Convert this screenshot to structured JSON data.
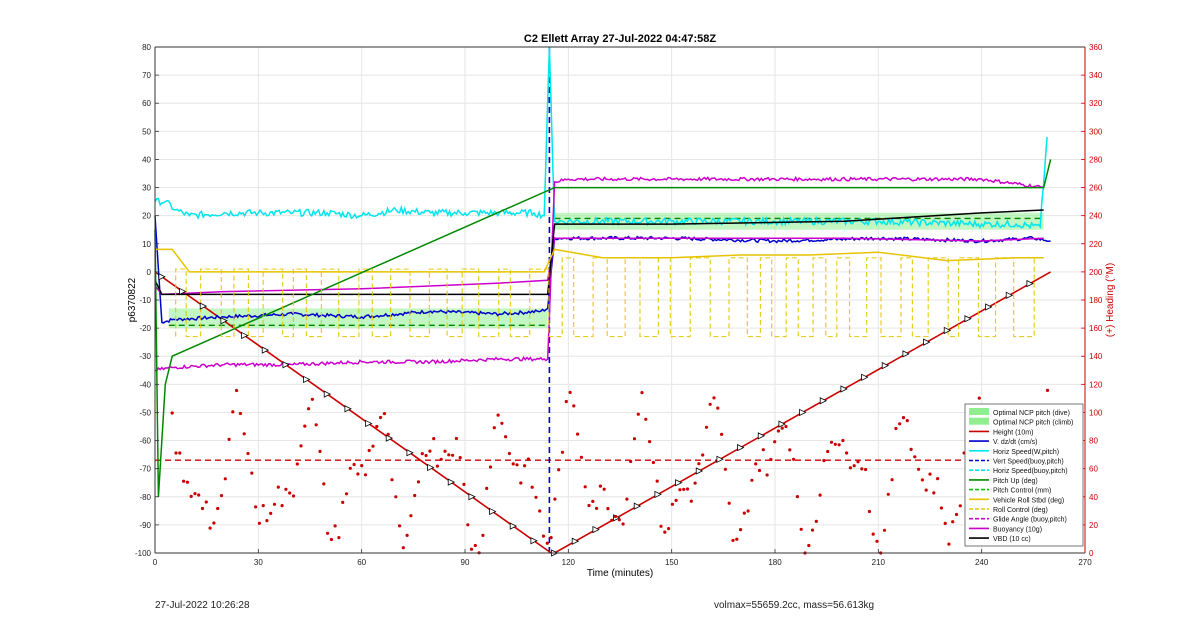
{
  "chart_data": {
    "type": "line",
    "title": "C2 Ellett Array 27-Jul-2022 04:47:58Z",
    "xlabel": "Time (minutes)",
    "ylabel": "p6370822",
    "y2label": "(+) Heading (°M)",
    "xlim": [
      0,
      270
    ],
    "ylim": [
      -100,
      80
    ],
    "y2lim": [
      0,
      360
    ],
    "xticks": [
      0,
      30,
      60,
      90,
      120,
      150,
      180,
      210,
      240,
      270
    ],
    "yticks": [
      -100,
      -90,
      -80,
      -70,
      -60,
      -50,
      -40,
      -30,
      -20,
      -10,
      0,
      10,
      20,
      30,
      40,
      50,
      60,
      70,
      80
    ],
    "y2ticks": [
      0,
      20,
      40,
      60,
      80,
      100,
      120,
      140,
      160,
      180,
      200,
      220,
      240,
      260,
      280,
      300,
      320,
      340,
      360
    ],
    "grid": true,
    "legend_position": "bottom-right",
    "legend": [
      {
        "label": "Optimal NCP pitch (dive)",
        "color": "#90ee90",
        "style": "patch"
      },
      {
        "label": "Optimal NCP pitch (climb)",
        "color": "#90ee90",
        "style": "patch"
      },
      {
        "label": "Height (10m)",
        "color": "#cc0000",
        "style": "solid"
      },
      {
        "label": "V. dz/dt (cm/s)",
        "color": "#0000cc",
        "style": "solid"
      },
      {
        "label": "Horiz Speed(W,pitch)",
        "color": "#00e5ee",
        "style": "solid"
      },
      {
        "label": "Vert Speed(buoy,pitch)",
        "color": "#0000cc",
        "style": "dashed"
      },
      {
        "label": "Horiz Speed(buoy,pitch)",
        "color": "#00e5ee",
        "style": "dashed"
      },
      {
        "label": "Pitch Up (deg)",
        "color": "#008800",
        "style": "solid"
      },
      {
        "label": "Pitch Control (mm)",
        "color": "#00c800",
        "style": "dashed"
      },
      {
        "label": "Vehicle Roll Stbd (deg)",
        "color": "#e6c300",
        "style": "solid"
      },
      {
        "label": "Roll Control (deg)",
        "color": "#e6c300",
        "style": "dashed"
      },
      {
        "label": "Glide Angle (buoy,pitch)",
        "color": "#cc00cc",
        "style": "dashed"
      },
      {
        "label": "Buoyancy (10g)",
        "color": "#cc00cc",
        "style": "solid"
      },
      {
        "label": "VBD (10 cc)",
        "color": "#000000",
        "style": "solid"
      }
    ],
    "series": [
      {
        "name": "Height (10m)",
        "color": "#cc0000",
        "x": [
          0,
          115,
          116,
          260
        ],
        "y": [
          0,
          -100,
          -100,
          0
        ]
      },
      {
        "name": "V. dz/dt (cm/s)",
        "color": "#0000cc",
        "x": [
          0,
          2,
          5,
          20,
          40,
          60,
          80,
          100,
          112,
          114,
          116,
          120,
          150,
          180,
          210,
          240,
          255,
          260
        ],
        "y": [
          20,
          -18,
          -17,
          -16,
          -15,
          -16,
          -14,
          -15,
          -14,
          -13,
          12,
          12,
          12,
          11,
          12,
          11,
          12,
          11
        ]
      },
      {
        "name": "Horiz Speed(W,pitch)",
        "color": "#00e5ee",
        "x": [
          0,
          3,
          6,
          10,
          20,
          30,
          40,
          50,
          60,
          70,
          80,
          90,
          100,
          110,
          113,
          114.5,
          116,
          120,
          150,
          180,
          210,
          240,
          250,
          257,
          259
        ],
        "y": [
          25,
          25,
          22,
          20,
          21,
          21,
          21,
          21,
          20,
          22,
          21,
          21,
          21,
          21,
          20,
          80,
          18,
          18,
          18,
          18,
          18,
          17,
          17,
          16,
          48
        ]
      },
      {
        "name": "Glide Angle (buoy,pitch)",
        "color": "#cc00cc",
        "x": [
          0,
          5,
          20,
          40,
          60,
          80,
          100,
          113,
          114,
          116,
          120,
          150,
          180,
          210,
          240,
          258
        ],
        "y": [
          -35,
          -34,
          -33,
          -33,
          -32,
          -32,
          -31,
          -31,
          -31,
          32,
          33,
          33,
          33,
          33,
          33,
          30
        ]
      },
      {
        "name": "Buoyancy (10g)",
        "color": "#cc00cc",
        "x": [
          0,
          2,
          20,
          60,
          100,
          114,
          116,
          150,
          200,
          240,
          258
        ],
        "y": [
          -5,
          -8,
          -7,
          -6,
          -4,
          -3,
          12,
          12,
          12,
          11,
          12
        ]
      },
      {
        "name": "VBD (10 cc)",
        "color": "#000000",
        "x": [
          0,
          2,
          20,
          60,
          100,
          114,
          116,
          150,
          200,
          240,
          258
        ],
        "y": [
          -3,
          -8,
          -8,
          -8,
          -8,
          -8,
          17,
          17,
          18,
          21,
          22
        ]
      },
      {
        "name": "Vehicle Roll Stbd (deg)",
        "color": "#e6c300",
        "x": [
          0,
          5,
          10,
          20,
          40,
          60,
          80,
          100,
          113,
          116,
          130,
          150,
          170,
          190,
          210,
          230,
          250,
          258
        ],
        "y": [
          8,
          8,
          0,
          0,
          0,
          0,
          0,
          0,
          0,
          8,
          5,
          5,
          6,
          6,
          7,
          4,
          5,
          5
        ]
      },
      {
        "name": "Pitch Up (deg)",
        "color": "#008800",
        "x": [
          0,
          1,
          3,
          5,
          116,
          258,
          260
        ],
        "y": [
          15,
          -80,
          -40,
          -30,
          30,
          30,
          40
        ]
      }
    ],
    "optimal_ncp_band": [
      {
        "name": "dive",
        "x": [
          4,
          114
        ],
        "y_low": -20,
        "y_high": -13
      },
      {
        "name": "climb",
        "x": [
          116,
          258
        ],
        "y_low": 15,
        "y_high": 21
      }
    ],
    "reference_lines": [
      {
        "label": "dive optimal",
        "style": "dashed",
        "color": "#008800",
        "x": [
          4,
          114
        ],
        "y": -19
      },
      {
        "label": "climb optimal",
        "style": "dashed",
        "color": "#008800",
        "x": [
          116,
          258
        ],
        "y": 19
      },
      {
        "label": "heading target",
        "style": "dashed",
        "color": "#cc0000",
        "x": [
          0,
          270
        ],
        "y": -67
      },
      {
        "label": "apogee",
        "style": "dashed",
        "color": "#0000cc",
        "x_at": 114.5
      }
    ]
  },
  "footer": {
    "left": "27-Jul-2022 10:26:28",
    "right": "volmax=55659.2cc, mass=56.613kg"
  }
}
